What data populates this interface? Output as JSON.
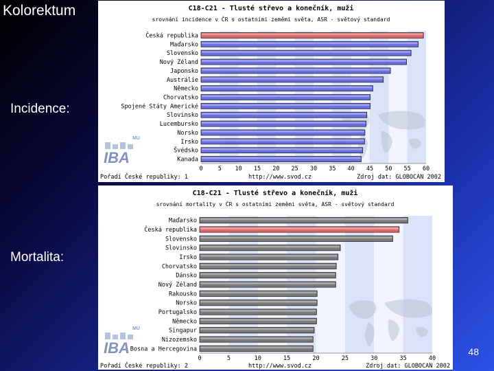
{
  "slide": {
    "title": "Kolorektum",
    "incidence_label": "Incidence:",
    "mortality_label": "Mortalita:",
    "page_number": "48"
  },
  "colors": {
    "bar_default_incidence": "#6b6ee0",
    "bar_highlight": "#e06868",
    "bar_default_mortality": "#7a7a7a",
    "band_light": "#f1f4ff",
    "band_dark": "#dbe3f8"
  },
  "chart_data": [
    {
      "type": "bar",
      "orientation": "horizontal",
      "title": "C18-C21 - Tlusté střevo a konečník, muži",
      "subtitle": "srovnání incidence v ČR s ostatními zeměmi světa, ASR - světový standard",
      "categories": [
        "Česká republika",
        "Maďarsko",
        "Slovensko",
        "Nový Zéland",
        "Japonsko",
        "Austrálie",
        "Německo",
        "Chorvatsko",
        "Spojené Státy Americké",
        "Slovinsko",
        "Lucembursko",
        "Norsko",
        "Irsko",
        "Švédsko",
        "Kanada"
      ],
      "values": [
        59.3,
        57.9,
        56.0,
        54.8,
        50.5,
        48.6,
        45.8,
        45.1,
        45.1,
        44.2,
        44.0,
        43.7,
        43.6,
        43.1,
        42.7
      ],
      "highlight_category": "Česká republika",
      "xlim": [
        0,
        60
      ],
      "xticks": [
        "0",
        "5",
        "10",
        "15",
        "20",
        "25",
        "30",
        "35",
        "40",
        "45",
        "50",
        "55",
        "60"
      ],
      "footer_left": "Pořadí České republiky: 1",
      "footer_center": "http://www.svod.cz",
      "footer_right": "Zdroj dat: GLOBOCAN 2002",
      "logo_text": "IBA",
      "logo_small": "MU"
    },
    {
      "type": "bar",
      "orientation": "horizontal",
      "title": "C18-C21 - Tlusté střevo a konečník, muži",
      "subtitle": "srovnání mortality v ČR s ostatními zeměmi světa, ASR - světový standard",
      "categories": [
        "Maďarsko",
        "Česká republika",
        "Slovensko",
        "Slovinsko",
        "Irsko",
        "Chorvatsko",
        "Dánsko",
        "Nový Zéland",
        "Rakousko",
        "Norsko",
        "Portugalsko",
        "Německo",
        "Singapur",
        "Nizozemsko",
        "Bosna a Hercegovina"
      ],
      "values": [
        35.8,
        34.3,
        33.2,
        24.2,
        23.8,
        23.5,
        23.4,
        23.4,
        20.2,
        20.2,
        20.1,
        20.1,
        19.7,
        19.5,
        19.5
      ],
      "highlight_category": "Česká republika",
      "xlim": [
        0,
        40
      ],
      "xticks": [
        "0",
        "5",
        "10",
        "15",
        "20",
        "25",
        "30",
        "35",
        "40"
      ],
      "footer_left": "Pořadí České republiky: 2",
      "footer_center": "http://www.svod.cz",
      "footer_right": "Zdroj dat: GLOBOCAN 2002",
      "logo_text": "IBA",
      "logo_small": "MU"
    }
  ]
}
